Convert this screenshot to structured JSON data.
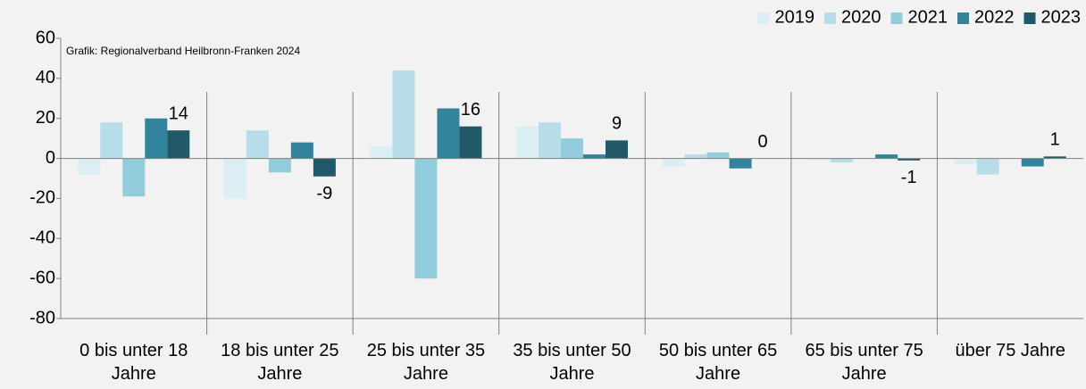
{
  "chart_data": {
    "type": "bar",
    "annotation": "Grafik: Regionalverband Heilbronn-Franken 2024",
    "categories": [
      "0 bis unter 18 Jahre",
      "18 bis unter 25 Jahre",
      "25 bis unter 35 Jahre",
      "35 bis unter 50 Jahre",
      "50 bis unter 65 Jahre",
      "65 bis unter 75 Jahre",
      "über 75 Jahre"
    ],
    "series": [
      {
        "name": "2019",
        "color": "#dbeef3",
        "values": [
          -8,
          -20,
          6,
          16,
          -4,
          -1,
          -3
        ]
      },
      {
        "name": "2020",
        "color": "#b7dde8",
        "values": [
          18,
          14,
          44,
          18,
          2,
          -2,
          -8
        ]
      },
      {
        "name": "2021",
        "color": "#92cddc",
        "values": [
          -19,
          -7,
          -60,
          10,
          3,
          0,
          0
        ]
      },
      {
        "name": "2022",
        "color": "#31849b",
        "values": [
          20,
          8,
          25,
          2,
          -5,
          2,
          -4
        ]
      },
      {
        "name": "2023",
        "color": "#215968",
        "values": [
          14,
          -9,
          16,
          9,
          0,
          -1,
          1
        ]
      }
    ],
    "data_labels_series": "2023",
    "ylim": [
      -80,
      60
    ],
    "yticks": [
      -80,
      -60,
      -40,
      -20,
      0,
      20,
      40,
      60
    ],
    "legend": "top-right"
  }
}
